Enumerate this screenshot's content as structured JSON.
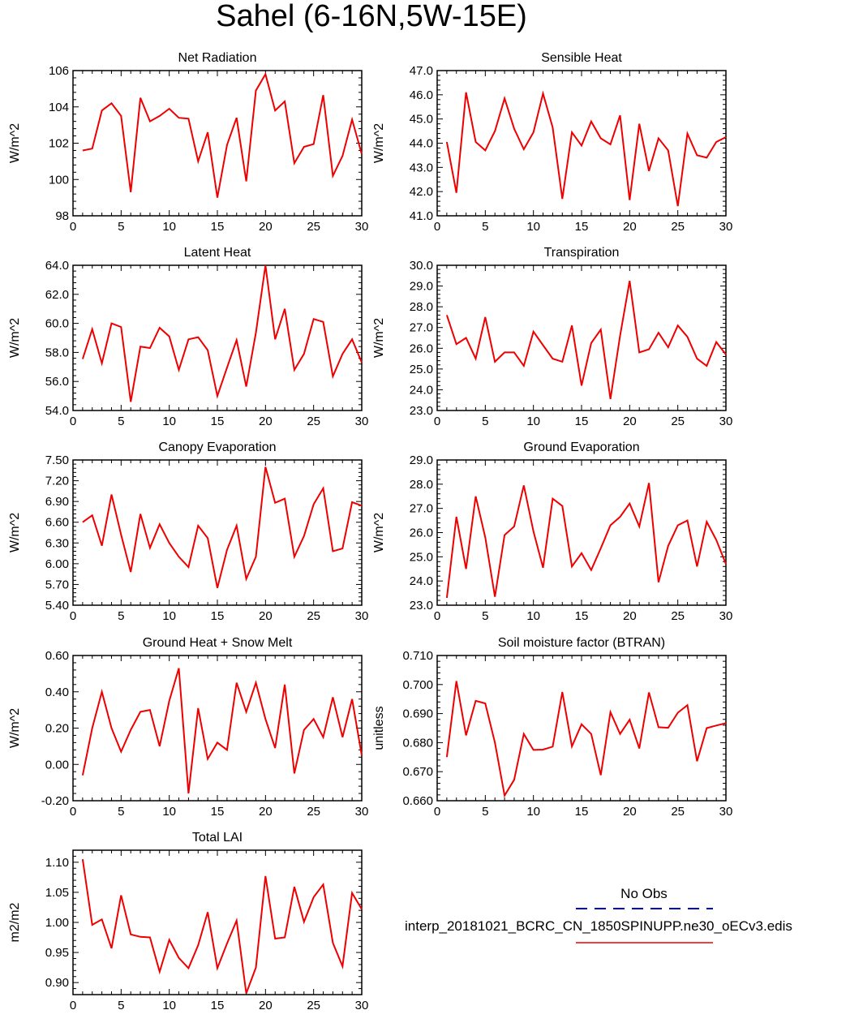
{
  "figure_title": "Sahel (6-16N,5W-15E)",
  "colors": {
    "model_line": "#ee0000",
    "obs_line": "#0000cc",
    "axis": "#000000"
  },
  "legend": {
    "obs_label": "No Obs",
    "model_label": "interp_20181021_BCRC_CN_1850SPINUPP.ne30_oECv3.edis"
  },
  "chart_data": [
    {
      "type": "line",
      "title": "Net Radiation",
      "ylabel": "W/m^2",
      "xlabel": "",
      "xlim": [
        0,
        30
      ],
      "ylim": [
        98,
        106
      ],
      "xticks": [
        0,
        5,
        10,
        15,
        20,
        25,
        30
      ],
      "yticks": [
        98,
        100,
        102,
        104,
        106
      ],
      "ytick_labels": [
        "98",
        "100",
        "102",
        "104",
        "106"
      ],
      "series": [
        {
          "name": "model",
          "x": [
            1,
            2,
            3,
            4,
            5,
            6,
            7,
            8,
            9,
            10,
            11,
            12,
            13,
            14,
            15,
            16,
            17,
            18,
            19,
            20,
            21,
            22,
            23,
            24,
            25,
            26,
            27,
            28,
            29,
            30
          ],
          "values": [
            101.6,
            101.7,
            103.8,
            104.2,
            103.5,
            99.3,
            104.5,
            103.2,
            103.5,
            103.9,
            103.4,
            103.35,
            101.0,
            102.6,
            99.0,
            101.9,
            103.4,
            99.9,
            104.9,
            105.8,
            103.8,
            104.3,
            100.9,
            101.8,
            101.95,
            104.65,
            100.2,
            101.3,
            103.3,
            101.4
          ]
        }
      ]
    },
    {
      "type": "line",
      "title": "Sensible Heat",
      "ylabel": "W/m^2",
      "xlabel": "",
      "xlim": [
        0,
        30
      ],
      "ylim": [
        41,
        47
      ],
      "xticks": [
        0,
        5,
        10,
        15,
        20,
        25,
        30
      ],
      "yticks": [
        41,
        42,
        43,
        44,
        45,
        46,
        47
      ],
      "ytick_labels": [
        "41.0",
        "42.0",
        "43.0",
        "44.0",
        "45.0",
        "46.0",
        "47.0"
      ],
      "series": [
        {
          "name": "model",
          "x": [
            1,
            2,
            3,
            4,
            5,
            6,
            7,
            8,
            9,
            10,
            11,
            12,
            13,
            14,
            15,
            16,
            17,
            18,
            19,
            20,
            21,
            22,
            23,
            24,
            25,
            26,
            27,
            28,
            29,
            30
          ],
          "values": [
            44.05,
            41.95,
            46.1,
            44.05,
            43.7,
            44.5,
            45.85,
            44.6,
            43.75,
            44.45,
            46.05,
            44.65,
            41.7,
            44.45,
            43.9,
            44.9,
            44.2,
            43.95,
            45.15,
            41.65,
            44.8,
            42.85,
            44.2,
            43.7,
            41.4,
            44.4,
            43.5,
            43.4,
            44.05,
            44.25
          ]
        }
      ]
    },
    {
      "type": "line",
      "title": "Latent Heat",
      "ylabel": "W/m^2",
      "xlabel": "",
      "xlim": [
        0,
        30
      ],
      "ylim": [
        54,
        64
      ],
      "xticks": [
        0,
        5,
        10,
        15,
        20,
        25,
        30
      ],
      "yticks": [
        54,
        56,
        58,
        60,
        62,
        64
      ],
      "ytick_labels": [
        "54.0",
        "56.0",
        "58.0",
        "60.0",
        "62.0",
        "64.0"
      ],
      "series": [
        {
          "name": "model",
          "x": [
            1,
            2,
            3,
            4,
            5,
            6,
            7,
            8,
            9,
            10,
            11,
            12,
            13,
            14,
            15,
            16,
            17,
            18,
            19,
            20,
            21,
            22,
            23,
            24,
            25,
            26,
            27,
            28,
            29,
            30
          ],
          "values": [
            57.55,
            59.6,
            57.25,
            60.0,
            59.75,
            54.6,
            58.4,
            58.3,
            59.7,
            59.1,
            56.8,
            58.9,
            59.05,
            58.15,
            55.0,
            56.95,
            58.85,
            55.65,
            59.35,
            64.0,
            58.9,
            61.0,
            56.8,
            57.9,
            60.3,
            60.1,
            56.35,
            57.9,
            58.9,
            57.3
          ]
        }
      ]
    },
    {
      "type": "line",
      "title": "Transpiration",
      "ylabel": "W/m^2",
      "xlabel": "",
      "xlim": [
        0,
        30
      ],
      "ylim": [
        23,
        30
      ],
      "xticks": [
        0,
        5,
        10,
        15,
        20,
        25,
        30
      ],
      "yticks": [
        23,
        24,
        25,
        26,
        27,
        28,
        29,
        30
      ],
      "ytick_labels": [
        "23.0",
        "24.0",
        "25.0",
        "26.0",
        "27.0",
        "28.0",
        "29.0",
        "30.0"
      ],
      "series": [
        {
          "name": "model",
          "x": [
            1,
            2,
            3,
            4,
            5,
            6,
            7,
            8,
            9,
            10,
            11,
            12,
            13,
            14,
            15,
            16,
            17,
            18,
            19,
            20,
            21,
            22,
            23,
            24,
            25,
            26,
            27,
            28,
            29,
            30
          ],
          "values": [
            27.6,
            26.2,
            26.5,
            25.5,
            27.5,
            25.35,
            25.8,
            25.8,
            25.15,
            26.8,
            26.15,
            25.5,
            25.35,
            27.1,
            24.2,
            26.25,
            26.9,
            23.55,
            26.6,
            29.25,
            25.8,
            25.95,
            26.75,
            26.05,
            27.1,
            26.55,
            25.5,
            25.15,
            26.3,
            25.7
          ]
        }
      ]
    },
    {
      "type": "line",
      "title": "Canopy Evaporation",
      "ylabel": "W/m^2",
      "xlabel": "",
      "xlim": [
        0,
        30
      ],
      "ylim": [
        5.4,
        7.5
      ],
      "xticks": [
        0,
        5,
        10,
        15,
        20,
        25,
        30
      ],
      "yticks": [
        5.4,
        5.7,
        6.0,
        6.3,
        6.6,
        6.9,
        7.2,
        7.5
      ],
      "ytick_labels": [
        "5.40",
        "5.70",
        "6.00",
        "6.30",
        "6.60",
        "6.90",
        "7.20",
        "7.50"
      ],
      "series": [
        {
          "name": "model",
          "x": [
            1,
            2,
            3,
            4,
            5,
            6,
            7,
            8,
            9,
            10,
            11,
            12,
            13,
            14,
            15,
            16,
            17,
            18,
            19,
            20,
            21,
            22,
            23,
            24,
            25,
            26,
            27,
            28,
            29,
            30
          ],
          "values": [
            6.6,
            6.7,
            6.26,
            7.0,
            6.42,
            5.88,
            6.72,
            6.23,
            6.57,
            6.3,
            6.1,
            5.95,
            6.55,
            6.37,
            5.65,
            6.2,
            6.55,
            5.78,
            6.1,
            7.4,
            6.88,
            6.94,
            6.1,
            6.4,
            6.86,
            7.09,
            6.18,
            6.22,
            6.89,
            6.84
          ]
        }
      ]
    },
    {
      "type": "line",
      "title": "Ground Evaporation",
      "ylabel": "W/m^2",
      "xlabel": "",
      "xlim": [
        0,
        30
      ],
      "ylim": [
        23,
        29
      ],
      "xticks": [
        0,
        5,
        10,
        15,
        20,
        25,
        30
      ],
      "yticks": [
        23,
        24,
        25,
        26,
        27,
        28,
        29
      ],
      "ytick_labels": [
        "23.0",
        "24.0",
        "25.0",
        "26.0",
        "27.0",
        "28.0",
        "29.0"
      ],
      "series": [
        {
          "name": "model",
          "x": [
            1,
            2,
            3,
            4,
            5,
            6,
            7,
            8,
            9,
            10,
            11,
            12,
            13,
            14,
            15,
            16,
            17,
            18,
            19,
            20,
            21,
            22,
            23,
            24,
            25,
            26,
            27,
            28,
            29,
            30
          ],
          "values": [
            23.3,
            26.65,
            24.5,
            27.5,
            25.8,
            23.35,
            25.9,
            26.25,
            27.95,
            26.05,
            24.55,
            27.4,
            27.1,
            24.6,
            25.15,
            24.45,
            25.35,
            26.3,
            26.65,
            27.2,
            26.25,
            28.05,
            23.95,
            25.45,
            26.3,
            26.5,
            24.6,
            26.45,
            25.7,
            24.7
          ]
        }
      ]
    },
    {
      "type": "line",
      "title": "Ground Heat + Snow Melt",
      "ylabel": "W/m^2",
      "xlabel": "",
      "xlim": [
        0,
        30
      ],
      "ylim": [
        -0.2,
        0.6
      ],
      "xticks": [
        0,
        5,
        10,
        15,
        20,
        25,
        30
      ],
      "yticks": [
        -0.2,
        0.0,
        0.2,
        0.4,
        0.6
      ],
      "ytick_labels": [
        "-0.20",
        "0.00",
        "0.20",
        "0.40",
        "0.60"
      ],
      "series": [
        {
          "name": "model",
          "x": [
            1,
            2,
            3,
            4,
            5,
            6,
            7,
            8,
            9,
            10,
            11,
            12,
            13,
            14,
            15,
            16,
            17,
            18,
            19,
            20,
            21,
            22,
            23,
            24,
            25,
            26,
            27,
            28,
            29,
            30
          ],
          "values": [
            -0.06,
            0.2,
            0.4,
            0.2,
            0.07,
            0.19,
            0.29,
            0.3,
            0.1,
            0.35,
            0.53,
            -0.16,
            0.31,
            0.03,
            0.12,
            0.08,
            0.45,
            0.29,
            0.45,
            0.25,
            0.09,
            0.44,
            -0.05,
            0.19,
            0.25,
            0.15,
            0.37,
            0.15,
            0.36,
            0.05
          ]
        }
      ]
    },
    {
      "type": "line",
      "title": "Soil moisture factor (BTRAN)",
      "ylabel": "unitless",
      "xlabel": "",
      "xlim": [
        0,
        30
      ],
      "ylim": [
        0.66,
        0.71
      ],
      "xticks": [
        0,
        5,
        10,
        15,
        20,
        25,
        30
      ],
      "yticks": [
        0.66,
        0.67,
        0.68,
        0.69,
        0.7,
        0.71
      ],
      "ytick_labels": [
        "0.660",
        "0.670",
        "0.680",
        "0.690",
        "0.700",
        "0.710"
      ],
      "series": [
        {
          "name": "model",
          "x": [
            1,
            2,
            3,
            4,
            5,
            6,
            7,
            8,
            9,
            10,
            11,
            12,
            13,
            14,
            15,
            16,
            17,
            18,
            19,
            20,
            21,
            22,
            23,
            24,
            25,
            26,
            27,
            28,
            29,
            30
          ],
          "values": [
            0.675,
            0.7012,
            0.6825,
            0.6944,
            0.6935,
            0.68,
            0.6618,
            0.6672,
            0.683,
            0.6775,
            0.6776,
            0.6786,
            0.6974,
            0.6787,
            0.6863,
            0.683,
            0.6688,
            0.6905,
            0.683,
            0.6879,
            0.678,
            0.6973,
            0.6853,
            0.6851,
            0.6903,
            0.6929,
            0.6736,
            0.685,
            0.6859,
            0.6867
          ]
        }
      ]
    },
    {
      "type": "line",
      "title": "Total LAI",
      "ylabel": "m2/m2",
      "xlabel": "",
      "xlim": [
        0,
        30
      ],
      "ylim": [
        0.88,
        1.12
      ],
      "xticks": [
        0,
        5,
        10,
        15,
        20,
        25,
        30
      ],
      "yticks": [
        0.9,
        0.95,
        1.0,
        1.05,
        1.1
      ],
      "ytick_labels": [
        "0.90",
        "0.95",
        "1.00",
        "1.05",
        "1.10"
      ],
      "series": [
        {
          "name": "model",
          "x": [
            1,
            2,
            3,
            4,
            5,
            6,
            7,
            8,
            9,
            10,
            11,
            12,
            13,
            14,
            15,
            16,
            17,
            18,
            19,
            20,
            21,
            22,
            23,
            24,
            25,
            26,
            27,
            28,
            29,
            30
          ],
          "values": [
            1.105,
            0.996,
            1.005,
            0.957,
            1.045,
            0.98,
            0.976,
            0.975,
            0.918,
            0.971,
            0.941,
            0.924,
            0.962,
            1.017,
            0.924,
            0.965,
            1.003,
            0.882,
            0.925,
            1.077,
            0.973,
            0.975,
            1.059,
            1.001,
            1.042,
            1.063,
            0.966,
            0.927,
            1.049,
            1.022
          ]
        }
      ]
    }
  ]
}
